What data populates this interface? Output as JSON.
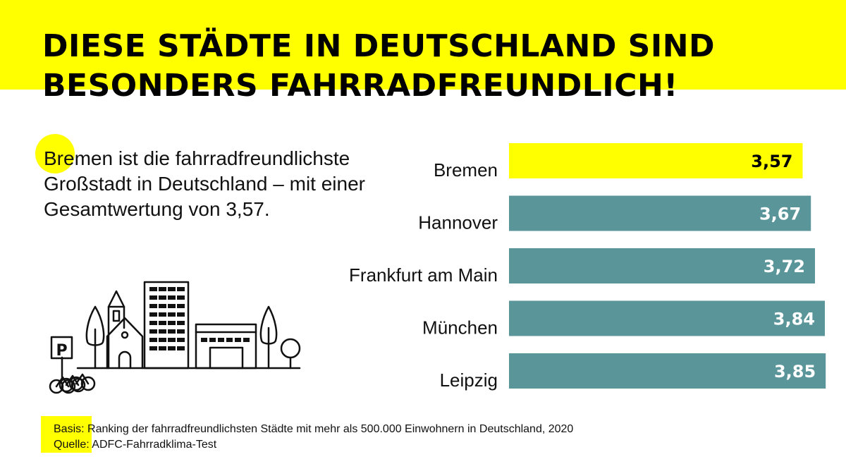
{
  "header": {
    "title_line1": "DIESE STÄDTE IN DEUTSCHLAND SIND",
    "title_line2": "BESONDERS FAHRRADFREUNDLICH!"
  },
  "intro": {
    "text": "Bremen ist die fahrradfreundlichste Großstadt in Deutschland – mit einer Gesamtwertung von 3,57."
  },
  "chart_data": {
    "type": "bar",
    "orientation": "horizontal",
    "categories": [
      "Bremen",
      "Hannover",
      "Frankfurt am Main",
      "München",
      "Leipzig"
    ],
    "values": [
      3.57,
      3.67,
      3.72,
      3.84,
      3.85
    ],
    "value_labels": [
      "3,57",
      "3,67",
      "3,72",
      "3,84",
      "3,85"
    ],
    "highlight_index": 0,
    "colors": {
      "highlight": "#ffff00",
      "bar": "#5a9599",
      "highlight_label": "#000000",
      "bar_label": "#ffffff"
    },
    "xlim": [
      0,
      3.9
    ],
    "grid": false,
    "legend": "none"
  },
  "illustration": {
    "parking_sign": "P",
    "icon": "city-bike-parking-icon"
  },
  "footer": {
    "basis_label": "Basis:",
    "basis_text": " Ranking der fahrradfreundlichsten Städte mit mehr als 500.000 Einwohnern in Deutschland, 2020",
    "source_label": "Quelle:",
    "source_text": " ADFC-Fahrradklima-Test"
  }
}
